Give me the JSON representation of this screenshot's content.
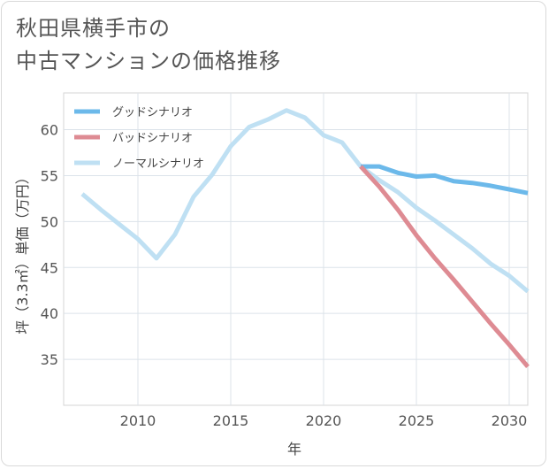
{
  "header": {
    "title_line1": "秋田県横手市の",
    "title_line2": "中古マンションの価格推移"
  },
  "chart_data": {
    "type": "line",
    "title": "秋田県横手市の中古マンションの価格推移",
    "xlabel": "年",
    "ylabel": "坪（3.3㎡）単価（万円）",
    "xlim": [
      2006,
      2031
    ],
    "ylim": [
      30,
      64
    ],
    "xticks": [
      2010,
      2015,
      2020,
      2025,
      2030
    ],
    "yticks": [
      35,
      40,
      45,
      50,
      55,
      60
    ],
    "grid": true,
    "legend_position": "top-left",
    "series": [
      {
        "name": "グッドシナリオ",
        "color": "#6cb9ea",
        "x": [
          2022,
          2023,
          2024,
          2025,
          2026,
          2027,
          2028,
          2029,
          2030,
          2031
        ],
        "values": [
          56.0,
          56.0,
          55.3,
          54.9,
          55.0,
          54.4,
          54.2,
          53.9,
          53.5,
          53.1
        ]
      },
      {
        "name": "バッドシナリオ",
        "color": "#de8b93",
        "x": [
          2022,
          2023,
          2024,
          2025,
          2026,
          2027,
          2028,
          2029,
          2030,
          2031
        ],
        "values": [
          56.0,
          53.8,
          51.3,
          48.5,
          46.0,
          43.7,
          41.3,
          38.9,
          36.6,
          34.2
        ]
      },
      {
        "name": "ノーマルシナリオ",
        "color": "#bfe0f3",
        "x": [
          2007,
          2008,
          2009,
          2010,
          2011,
          2012,
          2013,
          2014,
          2015,
          2016,
          2017,
          2018,
          2019,
          2020,
          2021,
          2022,
          2023,
          2024,
          2025,
          2026,
          2027,
          2028,
          2029,
          2030,
          2031
        ],
        "values": [
          53.0,
          51.3,
          49.7,
          48.1,
          46.0,
          48.6,
          52.7,
          55.1,
          58.2,
          60.3,
          61.1,
          62.1,
          61.3,
          59.4,
          58.6,
          56.0,
          54.5,
          53.2,
          51.5,
          50.1,
          48.6,
          47.1,
          45.4,
          44.1,
          42.4
        ]
      }
    ]
  }
}
